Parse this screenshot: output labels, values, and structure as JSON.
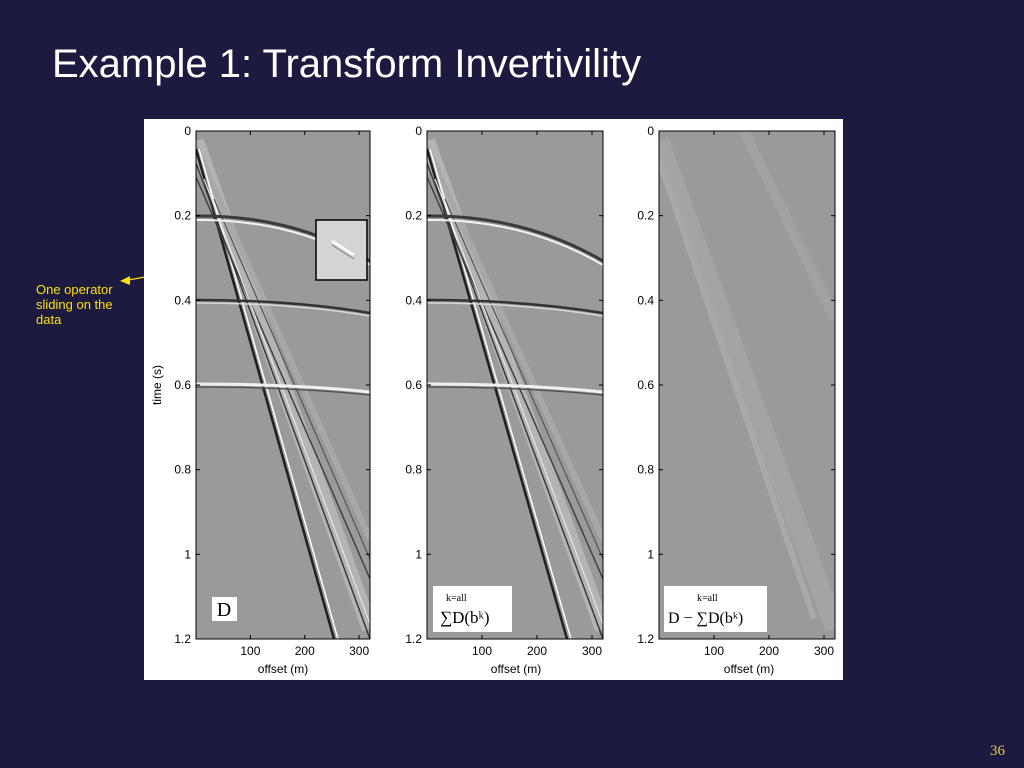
{
  "slide": {
    "title": "Example 1: Transform Invertivility",
    "number": "36",
    "callout": "One operator sliding on the data"
  },
  "colors": {
    "background": "#1d1a3f",
    "title": "#ffffff",
    "callout": "#ffe000",
    "panel_gray": "#9a9a9a"
  },
  "figure": {
    "ylabel": "time (s)",
    "xlabel": "offset (m)",
    "y_ticks": [
      "0",
      "0.2",
      "0.4",
      "0.6",
      "0.8",
      "1",
      "1.2"
    ],
    "x_ticks": [
      "100",
      "200",
      "300"
    ],
    "panels": [
      {
        "id": "data",
        "formula_main": "D"
      },
      {
        "id": "sum",
        "formula_main": "∑D(bᵏ)",
        "formula_limits": "k=all"
      },
      {
        "id": "residual",
        "formula_main": "D − ∑D(bᵏ)",
        "formula_limits": "k=all"
      }
    ]
  }
}
